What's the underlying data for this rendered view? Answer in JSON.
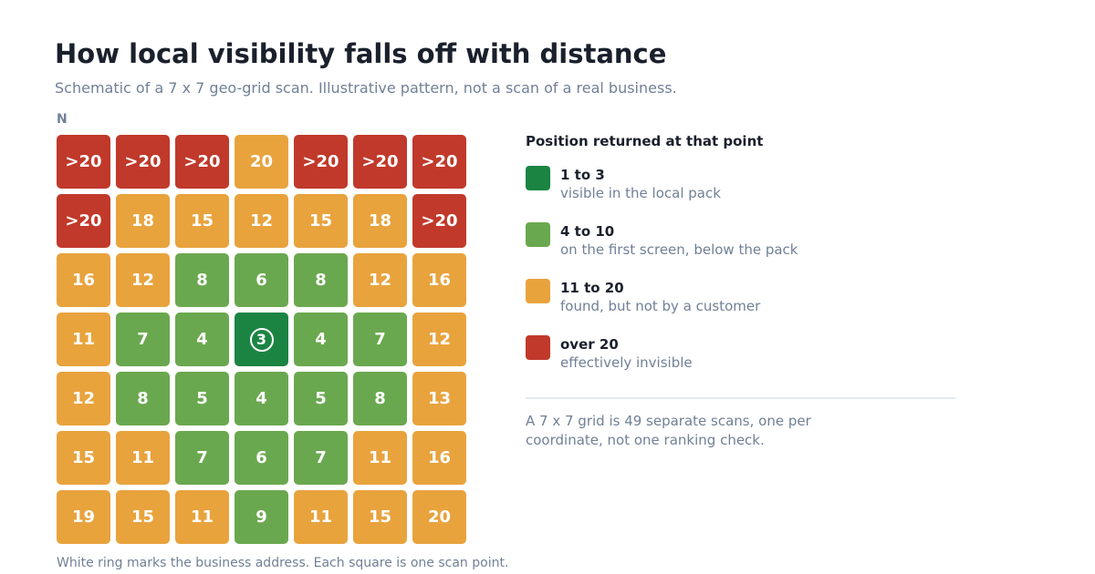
{
  "header": {
    "title": "How local visibility falls off with distance",
    "subtitle": "Schematic of a 7 x 7 geo-grid scan. Illustrative pattern, not a scan of a real business."
  },
  "grid": {
    "north_label": "N",
    "columns": 7,
    "rows": [
      [
        ">20",
        ">20",
        ">20",
        "20",
        ">20",
        ">20",
        ">20"
      ],
      [
        ">20",
        "18",
        "15",
        "12",
        "15",
        "18",
        ">20"
      ],
      [
        "16",
        "12",
        "8",
        "6",
        "8",
        "12",
        "16"
      ],
      [
        "11",
        "7",
        "4",
        "3",
        "4",
        "7",
        "12"
      ],
      [
        "12",
        "8",
        "5",
        "4",
        "5",
        "8",
        "13"
      ],
      [
        "15",
        "11",
        "7",
        "6",
        "7",
        "11",
        "16"
      ],
      [
        "19",
        "15",
        "11",
        "9",
        "11",
        "15",
        "20"
      ]
    ],
    "business_cell": {
      "row": 3,
      "col": 3
    },
    "footnote": "White ring marks the business address. Each square is one scan point."
  },
  "colors": {
    "top3": "#1b8443",
    "first_screen": "#6aa84f",
    "found": "#e8a33d",
    "invisible": "#c0392b"
  },
  "legend": {
    "title": "Position returned at that point",
    "items": [
      {
        "label": "1 to 3",
        "desc": "visible in the local pack",
        "color": "#1b8443"
      },
      {
        "label": "4 to 10",
        "desc": "on the first screen, below the pack",
        "color": "#6aa84f"
      },
      {
        "label": "11 to 20",
        "desc": "found, but not by a customer",
        "color": "#e8a33d"
      },
      {
        "label": "over 20",
        "desc": "effectively invisible",
        "color": "#c0392b"
      }
    ]
  },
  "note": "A 7 x 7 grid is 49 separate scans, one per coordinate, not one ranking check."
}
